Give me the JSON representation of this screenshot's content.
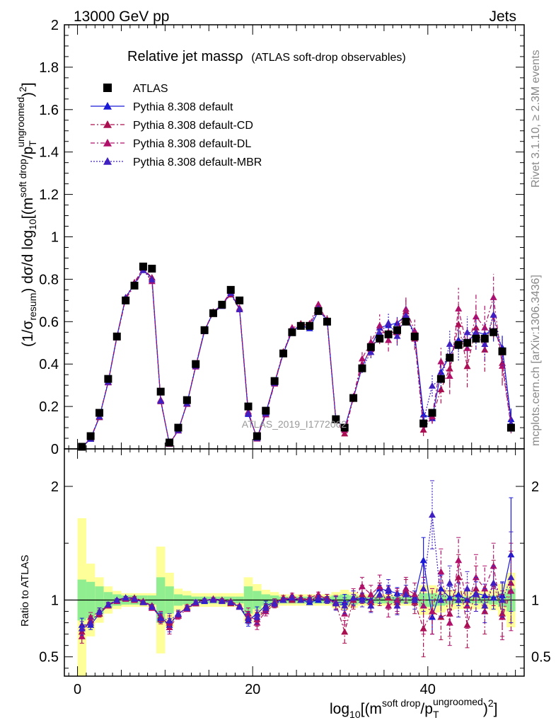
{
  "header": {
    "left": "13000 GeV pp",
    "right": "Jets"
  },
  "title": {
    "main": "Relative jet massρ",
    "sub": "(ATLAS soft-drop observables)"
  },
  "side_labels": {
    "rivet": "Rivet 3.1.10, ≥ 2.3M events",
    "mcplots": "mcplots.cern.ch [arXiv:1306.3436]"
  },
  "watermark": "ATLAS_2019_I1772062",
  "axes": {
    "ylabel_main": "(1/σresum) dσ/d log10[(msoft drop/pTungroomed)2]",
    "ylabel_ratio": "Ratio to ATLAS",
    "xlabel": "log10[(msoft drop/pTungroomed)2]"
  },
  "colors": {
    "data": "#000000",
    "default": "#1a1ad6",
    "cd": "#aa1050",
    "dl": "#b0106a",
    "mbr": "#4020c0",
    "band_inner": "#90ee90",
    "band_outer": "#ffff99"
  },
  "chart_data": {
    "type": "scatter",
    "x": [
      0.5,
      1.5,
      2.5,
      3.5,
      4.5,
      5.5,
      6.5,
      7.5,
      8.5,
      9.5,
      10.5,
      11.5,
      12.5,
      13.5,
      14.5,
      15.5,
      16.5,
      17.5,
      18.5,
      19.5,
      20.5,
      21.5,
      22.5,
      23.5,
      24.5,
      25.5,
      26.5,
      27.5,
      28.5,
      29.5,
      30.5,
      31.5,
      32.5,
      33.5,
      34.5,
      35.5,
      36.5,
      37.5,
      38.5,
      39.5,
      40.5,
      41.5,
      42.5,
      43.5,
      44.5,
      45.5,
      46.5,
      47.5,
      48.5,
      49.5
    ],
    "xlim": [
      -1.5,
      51
    ],
    "ylim_main": [
      0,
      2
    ],
    "ylim_ratio": [
      0.33,
      2.33
    ],
    "xticks": [
      0,
      20,
      40
    ],
    "yticks_main": [
      "0",
      "0.2",
      "0.4",
      "0.6",
      "0.8",
      "1",
      "1.2",
      "1.4",
      "1.6",
      "1.8",
      "2"
    ],
    "yticks_ratio": [
      "0.5",
      "1",
      "2"
    ],
    "ratio_ref": 1,
    "data_values": [
      0.01,
      0.06,
      0.17,
      0.33,
      0.53,
      0.7,
      0.77,
      0.86,
      0.85,
      0.27,
      0.03,
      0.1,
      0.23,
      0.4,
      0.56,
      0.64,
      0.68,
      0.75,
      0.7,
      0.2,
      0.06,
      0.18,
      0.32,
      0.45,
      0.55,
      0.58,
      0.58,
      0.65,
      0.6,
      0.14,
      0.1,
      0.24,
      0.38,
      0.48,
      0.52,
      0.54,
      0.56,
      0.6,
      0.53,
      0.12,
      0.17,
      0.33,
      0.43,
      0.49,
      0.5,
      0.52,
      0.52,
      0.55,
      0.46,
      0.1
    ],
    "band_inner": [
      0.18,
      0.16,
      0.12,
      0.07,
      0.05,
      0.04,
      0.04,
      0.04,
      0.04,
      0.2,
      0.12,
      0.05,
      0.04,
      0.03,
      0.03,
      0.03,
      0.03,
      0.03,
      0.03,
      0.12,
      0.08,
      0.05,
      0.04,
      0.03,
      0.03,
      0.03,
      0.03,
      0.03,
      0.03,
      0.04,
      0.05,
      0.04,
      0.03,
      0.03,
      0.03,
      0.03,
      0.03,
      0.03,
      0.03,
      0.06,
      0.06,
      0.05,
      0.04,
      0.03,
      0.03,
      0.03,
      0.03,
      0.04,
      0.06,
      0.1
    ],
    "band_outer": [
      0.72,
      0.32,
      0.2,
      0.12,
      0.08,
      0.06,
      0.06,
      0.06,
      0.06,
      0.47,
      0.24,
      0.1,
      0.08,
      0.06,
      0.06,
      0.06,
      0.06,
      0.06,
      0.06,
      0.2,
      0.14,
      0.09,
      0.07,
      0.05,
      0.05,
      0.05,
      0.05,
      0.05,
      0.05,
      0.07,
      0.09,
      0.07,
      0.05,
      0.05,
      0.05,
      0.05,
      0.05,
      0.05,
      0.05,
      0.13,
      0.13,
      0.11,
      0.09,
      0.08,
      0.08,
      0.08,
      0.08,
      0.09,
      0.14,
      0.24
    ],
    "series": [
      {
        "name": "ATLAS",
        "marker": "square",
        "line": "none",
        "ratio": [
          1,
          1,
          1,
          1,
          1,
          1,
          1,
          1,
          1,
          1,
          1,
          1,
          1,
          1,
          1,
          1,
          1,
          1,
          1,
          1,
          1,
          1,
          1,
          1,
          1,
          1,
          1,
          1,
          1,
          1,
          1,
          1,
          1,
          1,
          1,
          1,
          1,
          1,
          1,
          1,
          1,
          1,
          1,
          1,
          1,
          1,
          1,
          1,
          1,
          1
        ],
        "ratio_err": [
          0,
          0,
          0,
          0,
          0,
          0,
          0,
          0,
          0,
          0,
          0,
          0,
          0,
          0,
          0,
          0,
          0,
          0,
          0,
          0,
          0,
          0,
          0,
          0,
          0,
          0,
          0,
          0,
          0,
          0,
          0,
          0,
          0,
          0,
          0,
          0,
          0,
          0,
          0,
          0,
          0,
          0,
          0,
          0,
          0,
          0,
          0,
          0,
          0,
          0
        ]
      },
      {
        "name": "Pythia 8.308 default",
        "marker": "triangle",
        "line": "solid",
        "ratio": [
          0.78,
          0.78,
          0.88,
          0.95,
          1.0,
          1.02,
          1.01,
          0.98,
          0.95,
          0.85,
          0.78,
          0.88,
          0.93,
          0.97,
          0.99,
          1.01,
          1.0,
          0.98,
          0.94,
          0.82,
          0.88,
          0.95,
          0.98,
          1.0,
          1.01,
          1.0,
          0.98,
          1.0,
          1.02,
          0.98,
          0.98,
          1.0,
          1.02,
          1.0,
          1.1,
          1.08,
          1.06,
          1.05,
          1.02,
          1.35,
          0.85,
          1.1,
          1.02,
          1.05,
          1.0,
          1.06,
          1.04,
          1.02,
          1.04,
          1.4
        ],
        "ratio_err": [
          0.06,
          0.04,
          0.03,
          0.02,
          0.01,
          0.01,
          0.01,
          0.01,
          0.01,
          0.04,
          0.06,
          0.03,
          0.02,
          0.02,
          0.01,
          0.01,
          0.01,
          0.01,
          0.01,
          0.05,
          0.06,
          0.04,
          0.03,
          0.02,
          0.02,
          0.02,
          0.02,
          0.02,
          0.03,
          0.06,
          0.07,
          0.05,
          0.04,
          0.04,
          0.05,
          0.05,
          0.05,
          0.05,
          0.06,
          0.2,
          0.15,
          0.12,
          0.1,
          0.1,
          0.1,
          0.1,
          0.1,
          0.1,
          0.12,
          0.5
        ]
      },
      {
        "name": "Pythia 8.308 default-CD",
        "marker": "triangle",
        "line": "dashdot",
        "ratio": [
          0.72,
          0.82,
          0.88,
          0.96,
          1.0,
          1.02,
          1.02,
          0.99,
          0.95,
          0.83,
          0.8,
          0.87,
          0.94,
          0.98,
          1.0,
          1.0,
          1.0,
          0.97,
          0.94,
          0.85,
          0.83,
          0.92,
          0.98,
          1.02,
          1.0,
          1.02,
          1.0,
          1.03,
          1.02,
          0.97,
          0.72,
          1.0,
          1.05,
          0.98,
          1.05,
          1.02,
          0.98,
          1.08,
          0.98,
          0.75,
          0.9,
          0.85,
          0.88,
          1.2,
          0.78,
          1.1,
          0.9,
          1.15,
          0.88,
          1.15
        ],
        "ratio_err": [
          0.06,
          0.04,
          0.03,
          0.02,
          0.01,
          0.01,
          0.01,
          0.01,
          0.01,
          0.04,
          0.06,
          0.03,
          0.02,
          0.02,
          0.01,
          0.01,
          0.01,
          0.01,
          0.01,
          0.05,
          0.06,
          0.04,
          0.03,
          0.02,
          0.02,
          0.02,
          0.02,
          0.02,
          0.03,
          0.06,
          0.1,
          0.08,
          0.08,
          0.08,
          0.1,
          0.1,
          0.1,
          0.1,
          0.1,
          0.25,
          0.2,
          0.2,
          0.2,
          0.2,
          0.2,
          0.2,
          0.2,
          0.2,
          0.2,
          0.35
        ]
      },
      {
        "name": "Pythia 8.308 default-DL",
        "marker": "triangle",
        "line": "dashdot",
        "ratio": [
          0.68,
          0.85,
          0.9,
          0.95,
          0.99,
          1.01,
          1.0,
          0.98,
          0.93,
          0.86,
          0.76,
          0.86,
          0.92,
          0.97,
          1.0,
          1.01,
          1.0,
          0.99,
          0.95,
          0.88,
          0.8,
          0.9,
          0.96,
          1.0,
          1.04,
          1.0,
          1.02,
          1.05,
          1.0,
          0.98,
          0.88,
          1.02,
          1.12,
          1.05,
          1.12,
          0.95,
          1.0,
          1.1,
          1.05,
          0.95,
          0.9,
          1.25,
          0.8,
          1.35,
          0.95,
          1.2,
          1.1,
          1.3,
          0.85,
          1.08
        ],
        "ratio_err": [
          0.06,
          0.04,
          0.03,
          0.02,
          0.01,
          0.01,
          0.01,
          0.01,
          0.01,
          0.04,
          0.06,
          0.03,
          0.02,
          0.02,
          0.01,
          0.01,
          0.01,
          0.01,
          0.01,
          0.05,
          0.06,
          0.04,
          0.03,
          0.02,
          0.02,
          0.02,
          0.02,
          0.02,
          0.03,
          0.06,
          0.1,
          0.08,
          0.08,
          0.08,
          0.1,
          0.1,
          0.1,
          0.1,
          0.1,
          0.25,
          0.2,
          0.2,
          0.2,
          0.2,
          0.2,
          0.2,
          0.2,
          0.2,
          0.2,
          0.35
        ]
      },
      {
        "name": "Pythia 8.308 default-MBR",
        "marker": "triangle",
        "line": "dotted",
        "ratio": [
          0.75,
          0.8,
          0.9,
          0.96,
          1.0,
          1.02,
          1.01,
          0.98,
          0.94,
          0.84,
          0.82,
          0.88,
          0.93,
          0.98,
          1.0,
          1.0,
          0.99,
          0.98,
          0.94,
          0.84,
          0.85,
          0.93,
          0.97,
          1.0,
          1.02,
          1.0,
          1.0,
          1.02,
          1.0,
          0.97,
          0.95,
          1.02,
          1.0,
          0.95,
          1.05,
          1.1,
          0.95,
          1.05,
          1.0,
          1.1,
          1.75,
          1.0,
          1.15,
          1.0,
          1.1,
          1.05,
          0.95,
          1.15,
          1.0,
          1.2
        ],
        "ratio_err": [
          0.06,
          0.04,
          0.03,
          0.02,
          0.01,
          0.01,
          0.01,
          0.01,
          0.01,
          0.04,
          0.06,
          0.03,
          0.02,
          0.02,
          0.01,
          0.01,
          0.01,
          0.01,
          0.01,
          0.05,
          0.06,
          0.04,
          0.03,
          0.02,
          0.02,
          0.02,
          0.02,
          0.02,
          0.03,
          0.06,
          0.07,
          0.06,
          0.06,
          0.06,
          0.08,
          0.08,
          0.08,
          0.08,
          0.08,
          0.2,
          0.3,
          0.15,
          0.15,
          0.15,
          0.15,
          0.15,
          0.15,
          0.15,
          0.15,
          0.4
        ]
      }
    ]
  }
}
